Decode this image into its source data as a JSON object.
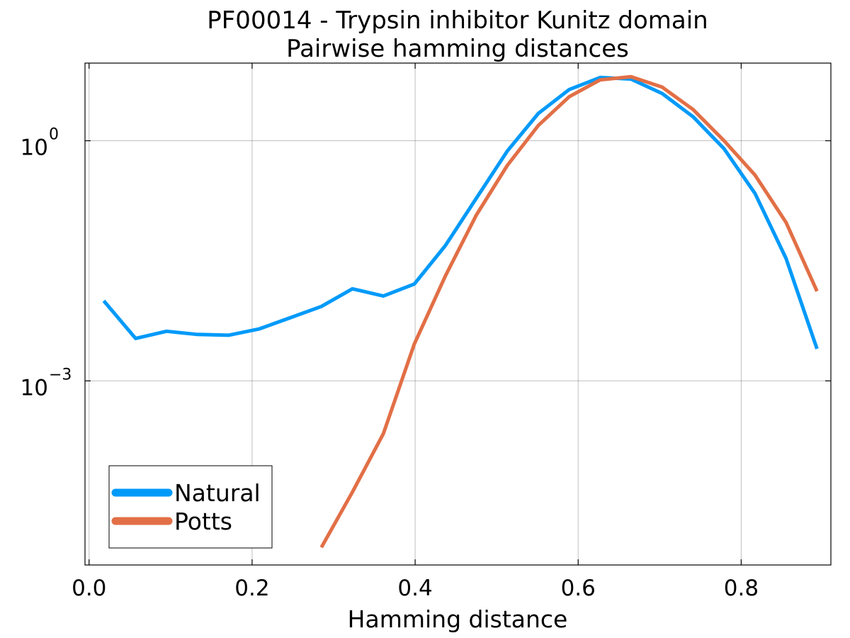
{
  "chart_data": {
    "type": "line",
    "title": "PF00014 - Trypsin inhibitor Kunitz domain",
    "subtitle": "Pairwise hamming distances",
    "xlabel": "Hamming distance",
    "ylabel": "",
    "xlim": [
      -0.005,
      0.91
    ],
    "ylim_log10": [
      -5.3,
      0.97
    ],
    "yscale": "log",
    "x_ticks": [
      {
        "value": 0.0,
        "label": "0.0"
      },
      {
        "value": 0.2,
        "label": "0.2"
      },
      {
        "value": 0.4,
        "label": "0.4"
      },
      {
        "value": 0.6,
        "label": "0.6"
      },
      {
        "value": 0.8,
        "label": "0.8"
      }
    ],
    "y_ticks": [
      {
        "log10": 0,
        "base": "10",
        "exp": "0"
      },
      {
        "log10": -3,
        "base": "10",
        "exp": "−3"
      }
    ],
    "grid": true,
    "legend_position": "bottom-left",
    "series": [
      {
        "name": "Natural",
        "color": "#009af9",
        "x": [
          0.018,
          0.057,
          0.095,
          0.133,
          0.171,
          0.209,
          0.247,
          0.285,
          0.323,
          0.361,
          0.399,
          0.437,
          0.475,
          0.513,
          0.551,
          0.589,
          0.627,
          0.665,
          0.703,
          0.741,
          0.779,
          0.817,
          0.855,
          0.893
        ],
        "log10_y": [
          -2.0,
          -2.47,
          -2.38,
          -2.42,
          -2.43,
          -2.35,
          -2.21,
          -2.07,
          -1.85,
          -1.94,
          -1.79,
          -1.31,
          -0.72,
          -0.13,
          0.34,
          0.64,
          0.79,
          0.77,
          0.59,
          0.3,
          -0.1,
          -0.66,
          -1.47,
          -2.6
        ]
      },
      {
        "name": "Potts",
        "color": "#e26f46",
        "x": [
          0.285,
          0.323,
          0.361,
          0.399,
          0.437,
          0.475,
          0.513,
          0.551,
          0.589,
          0.627,
          0.665,
          0.703,
          0.741,
          0.779,
          0.817,
          0.855,
          0.893
        ],
        "log10_y": [
          -5.08,
          -4.39,
          -3.66,
          -2.54,
          -1.69,
          -0.93,
          -0.31,
          0.19,
          0.55,
          0.76,
          0.8,
          0.67,
          0.39,
          0.0,
          -0.43,
          -1.02,
          -1.88
        ]
      }
    ]
  }
}
